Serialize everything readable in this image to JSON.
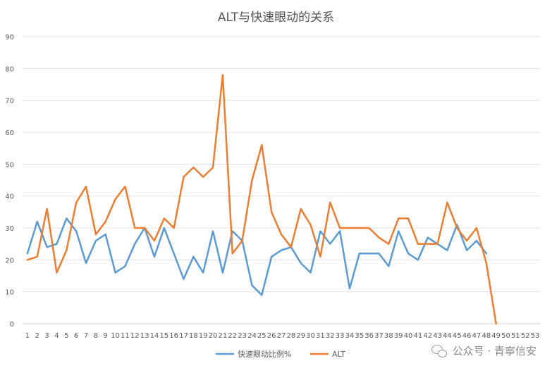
{
  "chart_data": {
    "type": "line",
    "title": "ALT与快速眼动的关系",
    "ylim": [
      0,
      90
    ],
    "y_ticks": [
      0,
      10,
      20,
      30,
      40,
      50,
      60,
      70,
      80,
      90
    ],
    "categories": [
      "1",
      "2",
      "3",
      "4",
      "5",
      "6",
      "7",
      "8",
      "9",
      "10",
      "11",
      "12",
      "13",
      "14",
      "15",
      "16",
      "17",
      "18",
      "19",
      "20",
      "21",
      "22",
      "23",
      "24",
      "25",
      "26",
      "27",
      "28",
      "29",
      "30",
      "31",
      "32",
      "33",
      "34",
      "35",
      "36",
      "37",
      "38",
      "39",
      "40",
      "41",
      "42",
      "43",
      "44",
      "45",
      "46",
      "47",
      "48",
      "49",
      "50",
      "51",
      "52",
      "53"
    ],
    "grid": true,
    "legend_position": "bottom",
    "series": [
      {
        "name": "快速眼动比例%",
        "color": "#5b9bd5",
        "values": [
          22,
          32,
          24,
          25,
          33,
          29,
          19,
          26,
          28,
          16,
          18,
          25,
          30,
          21,
          30,
          22,
          14,
          21,
          16,
          29,
          16,
          29,
          26,
          12,
          9,
          21,
          23,
          24,
          19,
          16,
          29,
          25,
          29,
          11,
          22,
          22,
          22,
          18,
          29,
          22,
          20,
          27,
          25,
          23,
          31,
          23,
          26,
          22,
          null,
          null,
          null,
          null,
          null
        ]
      },
      {
        "name": "ALT",
        "color": "#ed7d31",
        "values": [
          20,
          21,
          36,
          16,
          23,
          38,
          43,
          28,
          32,
          39,
          43,
          30,
          30,
          26,
          33,
          30,
          46,
          49,
          46,
          49,
          78,
          22,
          26,
          45,
          56,
          35,
          28,
          24,
          36,
          31,
          21,
          38,
          30,
          30,
          30,
          30,
          27,
          25,
          33,
          33,
          25,
          25,
          25,
          38,
          30,
          26,
          30,
          19,
          0,
          null,
          null,
          null,
          null
        ]
      }
    ]
  },
  "watermark": {
    "icon": "wechat-icon",
    "text": "公众号 · 青寧信安"
  }
}
